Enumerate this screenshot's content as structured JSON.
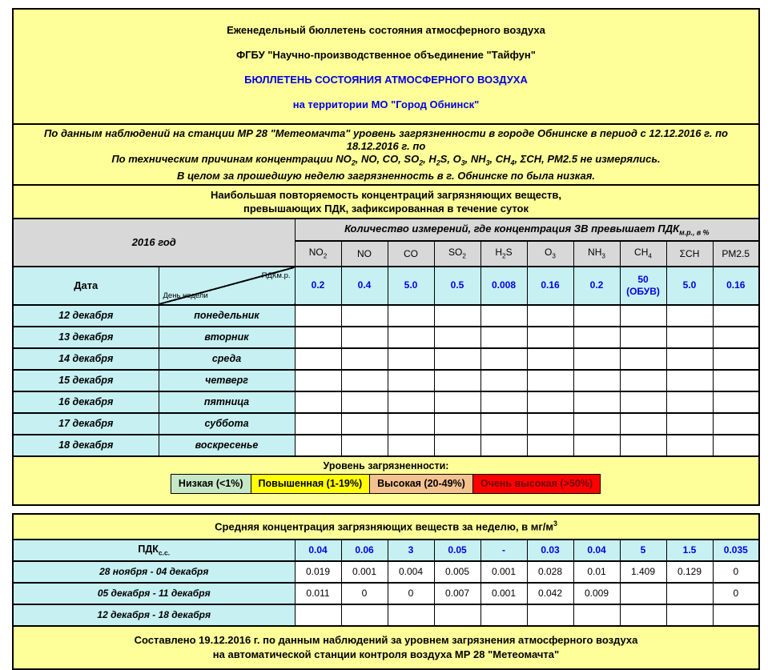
{
  "colors": {
    "block_bg": "#ffff99",
    "cell_cyan": "#c6f0f2",
    "header_grey": "#d8d8d8",
    "accent_blue": "#0000e0",
    "legend_green": "#c7e8c7",
    "legend_yellow": "#ffff00",
    "legend_tan": "#f4c28f",
    "legend_red": "#ff0000"
  },
  "header": {
    "line1": "Еженедельный бюллетень состояния атмосферного воздуха",
    "line2": "ФГБУ \"Научно-производственное объединение \"Тайфун\"",
    "line3": "БЮЛЛЕТЕНЬ СОСТОЯНИЯ АТМОСФЕРНОГО ВОЗДУХА",
    "line4": "на территории МО \"Город Обнинск\""
  },
  "intro": {
    "line1": "По данным наблюдений на станции МР 28 \"Метеомачта\" уровень загрязненности в городе Обнинске в период с 12.12.2016 г. по",
    "line2": "18.12.2016 г. по",
    "line3": "По техническим причинам концентрации NO~2~, NO, CO, SO~2~, H~2~S, O~3~, NH~3~, CH~4~, ΣCH, PM2.5 не измерялись.",
    "line4": "В целом за прошедшую неделю загрязненность в г. Обнинске по была низкая."
  },
  "main_table": {
    "title_line1": "Наибольшая повторяемость концентраций загрязняющих веществ,",
    "title_line2": "превышающих ПДК, зафиксированная в течение суток",
    "year_label": "2016 год",
    "measure_header": "Количество измерений, где концентрация ЗВ превышает ПДК~м.р., в %~",
    "columns": [
      "NO~2~",
      "NO",
      "CO",
      "SO~2~",
      "H~2~S",
      "O~3~",
      "NH~3~",
      "CH~4~",
      "ΣCH",
      "PM2.5"
    ],
    "date_label": "Дата",
    "diag_top": "ПДКм.р.",
    "diag_bottom": "День недели",
    "pdk_values": [
      "0.2",
      "0.4",
      "5.0",
      "0.5",
      "0.008",
      "0.16",
      "0.2",
      "50\n(ОБУВ)",
      "5.0",
      "0.16"
    ],
    "days": [
      {
        "date": "12 декабря",
        "weekday": "понедельник"
      },
      {
        "date": "13 декабря",
        "weekday": "вторник"
      },
      {
        "date": "14 декабря",
        "weekday": "среда"
      },
      {
        "date": "15 декабря",
        "weekday": "четверг"
      },
      {
        "date": "16 декабря",
        "weekday": "пятница"
      },
      {
        "date": "17 декабря",
        "weekday": "суббота"
      },
      {
        "date": "18 декабря",
        "weekday": "воскресенье"
      }
    ]
  },
  "legend": {
    "title": "Уровень загрязненности:",
    "items": [
      {
        "label": "Низкая (<1%)",
        "bg": "#c7e8c7",
        "fg": "#000000"
      },
      {
        "label": "Повышенная (1-19%)",
        "bg": "#ffff00",
        "fg": "#000000"
      },
      {
        "label": "Высокая (20-49%)",
        "bg": "#f4c28f",
        "fg": "#000000"
      },
      {
        "label": "Очень высокая (>50%)",
        "bg": "#ff0000",
        "fg": "#6b0b0b"
      }
    ]
  },
  "avg_table": {
    "title": "Средняя концентрация загрязняющих веществ за неделю, в мг/м^3^",
    "pdk_label": "ПДК~с.с.~",
    "pdk_values": [
      "0.04",
      "0.06",
      "3",
      "0.05",
      "-",
      "0.03",
      "0.04",
      "5",
      "1.5",
      "0.035"
    ],
    "weeks": [
      {
        "label": "28 ноября - 04 декабря",
        "values": [
          "0.019",
          "0.001",
          "0.004",
          "0.005",
          "0.001",
          "0.028",
          "0.01",
          "1.409",
          "0.129",
          "0"
        ]
      },
      {
        "label": "05 декабря - 11 декабря",
        "values": [
          "0.011",
          "0",
          "0",
          "0.007",
          "0.001",
          "0.042",
          "0.009",
          "",
          "",
          "0"
        ]
      },
      {
        "label": "12 декабря - 18 декабря",
        "values": [
          "",
          "",
          "",
          "",
          "",
          "",
          "",
          "",
          "",
          ""
        ]
      }
    ]
  },
  "footer": {
    "line1": "Составлено 19.12.2016 г. по данным наблюдений за уровнем загрязнения атмосферного воздуха",
    "line2": "на автоматической станции контроля воздуха МР 28 \"Метеомачта\""
  }
}
